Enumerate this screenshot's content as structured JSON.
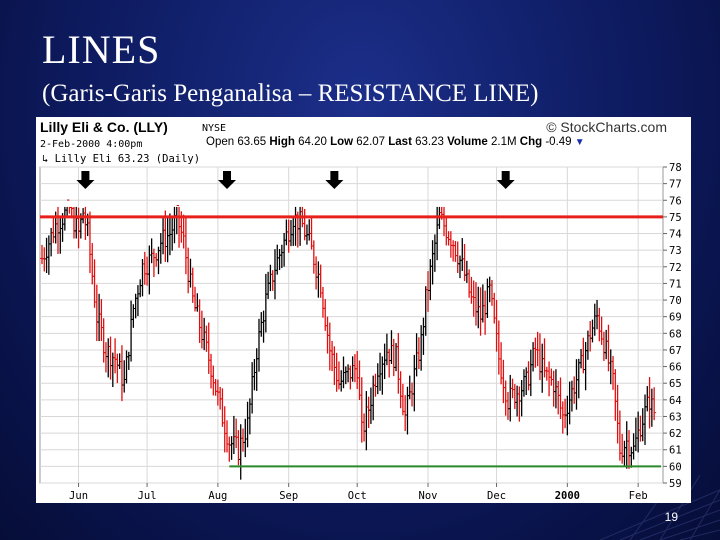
{
  "slide": {
    "title": "LINES",
    "subtitle": "(Garis-Garis Penganalisa – RESISTANCE LINE)",
    "page_number": "19",
    "background_color": "#0d1a5e"
  },
  "chart_header": {
    "company": "Lilly Eli & Co. (LLY)",
    "exchange": "NYSE",
    "brand": "© StockCharts.com",
    "datetime": "2-Feb-2000 4:00pm",
    "open_label": "Open",
    "open_value": "63.65",
    "high_label": "High",
    "high_value": "64.20",
    "low_label": "Low",
    "low_value": "62.07",
    "last_label": "Last",
    "last_value": "63.23",
    "volume_label": "Volume",
    "volume_value": "2.1M",
    "chg_label": "Chg",
    "chg_value": "-0.49",
    "legend": "Lilly Eli 63.23 (Daily)"
  },
  "chart_data": {
    "type": "ohlc",
    "y_axis": {
      "range": [
        59,
        78
      ],
      "ticks": [
        "78",
        "77",
        "76",
        "75",
        "74",
        "73",
        "72",
        "71",
        "70",
        "69",
        "68",
        "67",
        "66",
        "65",
        "64",
        "63",
        "62",
        "61",
        "60",
        "59"
      ],
      "position": "right"
    },
    "x_axis": {
      "labels": [
        "Jun",
        "Jul",
        "Aug",
        "Sep",
        "Oct",
        "Nov",
        "Dec",
        "2000",
        "Feb"
      ],
      "label_positions_days": [
        16,
        46,
        77,
        108,
        138,
        169,
        199,
        230,
        261
      ]
    },
    "grid": true,
    "up_color": "#000000",
    "down_color": "#e01010",
    "resistance_line": {
      "level": 75.0,
      "color": "#e8201c",
      "label": "RESISTANCE LINE"
    },
    "support_line": {
      "level": 60.0,
      "from_day": 82,
      "to_day": 271,
      "color": "#2a8a2a"
    },
    "resistance_touch_markers_days": [
      19,
      81,
      128,
      203
    ],
    "anchors": [
      [
        0,
        72.5
      ],
      [
        6,
        74.5
      ],
      [
        12,
        75.5
      ],
      [
        16,
        74
      ],
      [
        18,
        75.3
      ],
      [
        20,
        74
      ],
      [
        24,
        69
      ],
      [
        28,
        67
      ],
      [
        32,
        66.5
      ],
      [
        36,
        65
      ],
      [
        40,
        69.5
      ],
      [
        44,
        72
      ],
      [
        48,
        72.5
      ],
      [
        52,
        73.5
      ],
      [
        56,
        74
      ],
      [
        59,
        75
      ],
      [
        62,
        73.5
      ],
      [
        66,
        70
      ],
      [
        70,
        68
      ],
      [
        74,
        66
      ],
      [
        78,
        63.5
      ],
      [
        82,
        61.5
      ],
      [
        86,
        61
      ],
      [
        90,
        62.5
      ],
      [
        94,
        67
      ],
      [
        98,
        70
      ],
      [
        102,
        72
      ],
      [
        106,
        73.5
      ],
      [
        110,
        75
      ],
      [
        114,
        74.5
      ],
      [
        118,
        73
      ],
      [
        122,
        71
      ],
      [
        126,
        67
      ],
      [
        130,
        65
      ],
      [
        134,
        65.5
      ],
      [
        138,
        66
      ],
      [
        140,
        62
      ],
      [
        143,
        63.5
      ],
      [
        147,
        66
      ],
      [
        151,
        67
      ],
      [
        155,
        66.5
      ],
      [
        159,
        63
      ],
      [
        163,
        65.5
      ],
      [
        166,
        67.5
      ],
      [
        168,
        70
      ],
      [
        171,
        72.5
      ],
      [
        174,
        75
      ],
      [
        176,
        74.5
      ],
      [
        180,
        73.5
      ],
      [
        184,
        72
      ],
      [
        188,
        70
      ],
      [
        192,
        69
      ],
      [
        196,
        70.5
      ],
      [
        200,
        66.5
      ],
      [
        204,
        64
      ],
      [
        208,
        64.5
      ],
      [
        212,
        65
      ],
      [
        216,
        67
      ],
      [
        220,
        65.5
      ],
      [
        224,
        65
      ],
      [
        228,
        63
      ],
      [
        232,
        64.5
      ],
      [
        236,
        66
      ],
      [
        240,
        68
      ],
      [
        243,
        69
      ],
      [
        246,
        67.5
      ],
      [
        250,
        65
      ],
      [
        253,
        61
      ],
      [
        256,
        61.5
      ],
      [
        259,
        61
      ],
      [
        262,
        62.5
      ],
      [
        266,
        64
      ],
      [
        268,
        63.2
      ]
    ],
    "series_last_close": 63.23
  }
}
